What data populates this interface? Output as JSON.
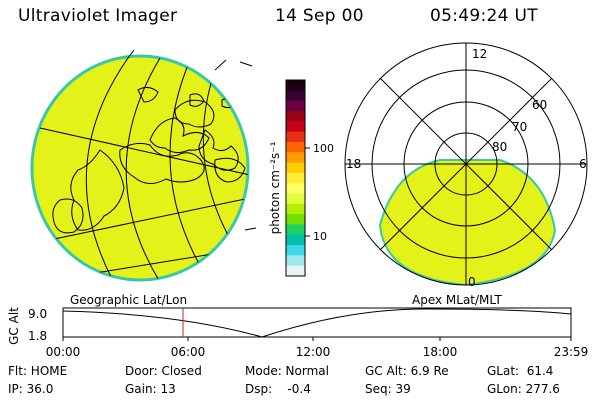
{
  "header": {
    "instrument": "Ultraviolet Imager",
    "date": "14 Sep 00",
    "time": "05:49:24 UT"
  },
  "colorbar": {
    "unit_label": "photon cm⁻²s⁻¹",
    "tick_labels": [
      "100",
      "10"
    ],
    "colors": [
      "#1a0010",
      "#3a0030",
      "#6a0040",
      "#9a0018",
      "#c80018",
      "#e83018",
      "#ff6600",
      "#ff9a00",
      "#ffcc00",
      "#ffee33",
      "#ffff66",
      "#e0ff3a",
      "#b0f000",
      "#70e000",
      "#20d060",
      "#00c0b0",
      "#40d8e8",
      "#a0e8f0",
      "#e8f4f6"
    ]
  },
  "polar_plot": {
    "ring_labels": [
      "80",
      "70",
      "60"
    ],
    "mlt_labels": [
      "12",
      "18",
      "6",
      "0"
    ]
  },
  "orbit_plot": {
    "left_title": "Geographic Lat/Lon",
    "right_title": "Apex MLat/MLT",
    "ylabel": "GC Alt",
    "ytick_labels": [
      "9.0",
      "1.8"
    ],
    "xtick_labels": [
      "00:00",
      "06:00",
      "12:00",
      "18:00",
      "23:59"
    ]
  },
  "status": {
    "filter": "Flt: HOME",
    "ip": "IP: 36.0",
    "door": "Door: Closed",
    "gain": "Gain: 13",
    "mode": "Mode: Normal",
    "dsp": "Dsp:    -0.4",
    "gc_alt": "GC Alt: 6.9 Re",
    "seq": "Seq: 39",
    "glat": "GLat:  61.4",
    "glon": "GLon: 277.6"
  },
  "colors": {
    "image_fill": "#e4f21a",
    "image_edge": "#38c8a8",
    "marker": "#d42020"
  }
}
